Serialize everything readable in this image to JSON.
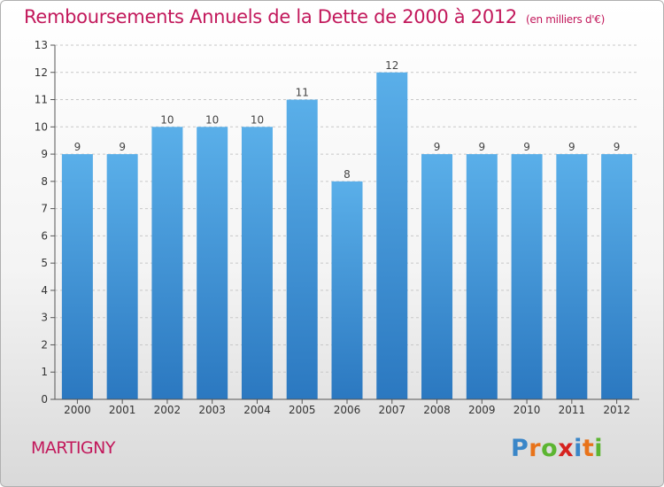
{
  "chart_data": {
    "type": "bar",
    "title": "Remboursements Annuels de la Dette de 2000 à 2012",
    "unit_note": "(en milliers d'€)",
    "categories": [
      "2000",
      "2001",
      "2002",
      "2003",
      "2004",
      "2005",
      "2006",
      "2007",
      "2008",
      "2009",
      "2010",
      "2011",
      "2012"
    ],
    "values": [
      9,
      9,
      10,
      10,
      10,
      11,
      8,
      12,
      9,
      9,
      9,
      9,
      9
    ],
    "ylim": [
      0,
      13
    ],
    "yticks": [
      0,
      1,
      2,
      3,
      4,
      5,
      6,
      7,
      8,
      9,
      10,
      11,
      12,
      13
    ],
    "grid": true,
    "data_labels": true,
    "colors": {
      "bar_top": "#5aafe9",
      "bar_bottom": "#2b78c0",
      "title": "#c2185b",
      "grid": "#c8c8c8",
      "axis": "#555555"
    }
  },
  "location": "MARTIGNY",
  "logo": {
    "letters": [
      "P",
      "r",
      "o",
      "x",
      "i",
      "t",
      "i"
    ],
    "colors": [
      "#3a86c8",
      "#e8731a",
      "#5cb531",
      "#d6221f",
      "#3a86c8",
      "#e8731a",
      "#5cb531"
    ]
  }
}
